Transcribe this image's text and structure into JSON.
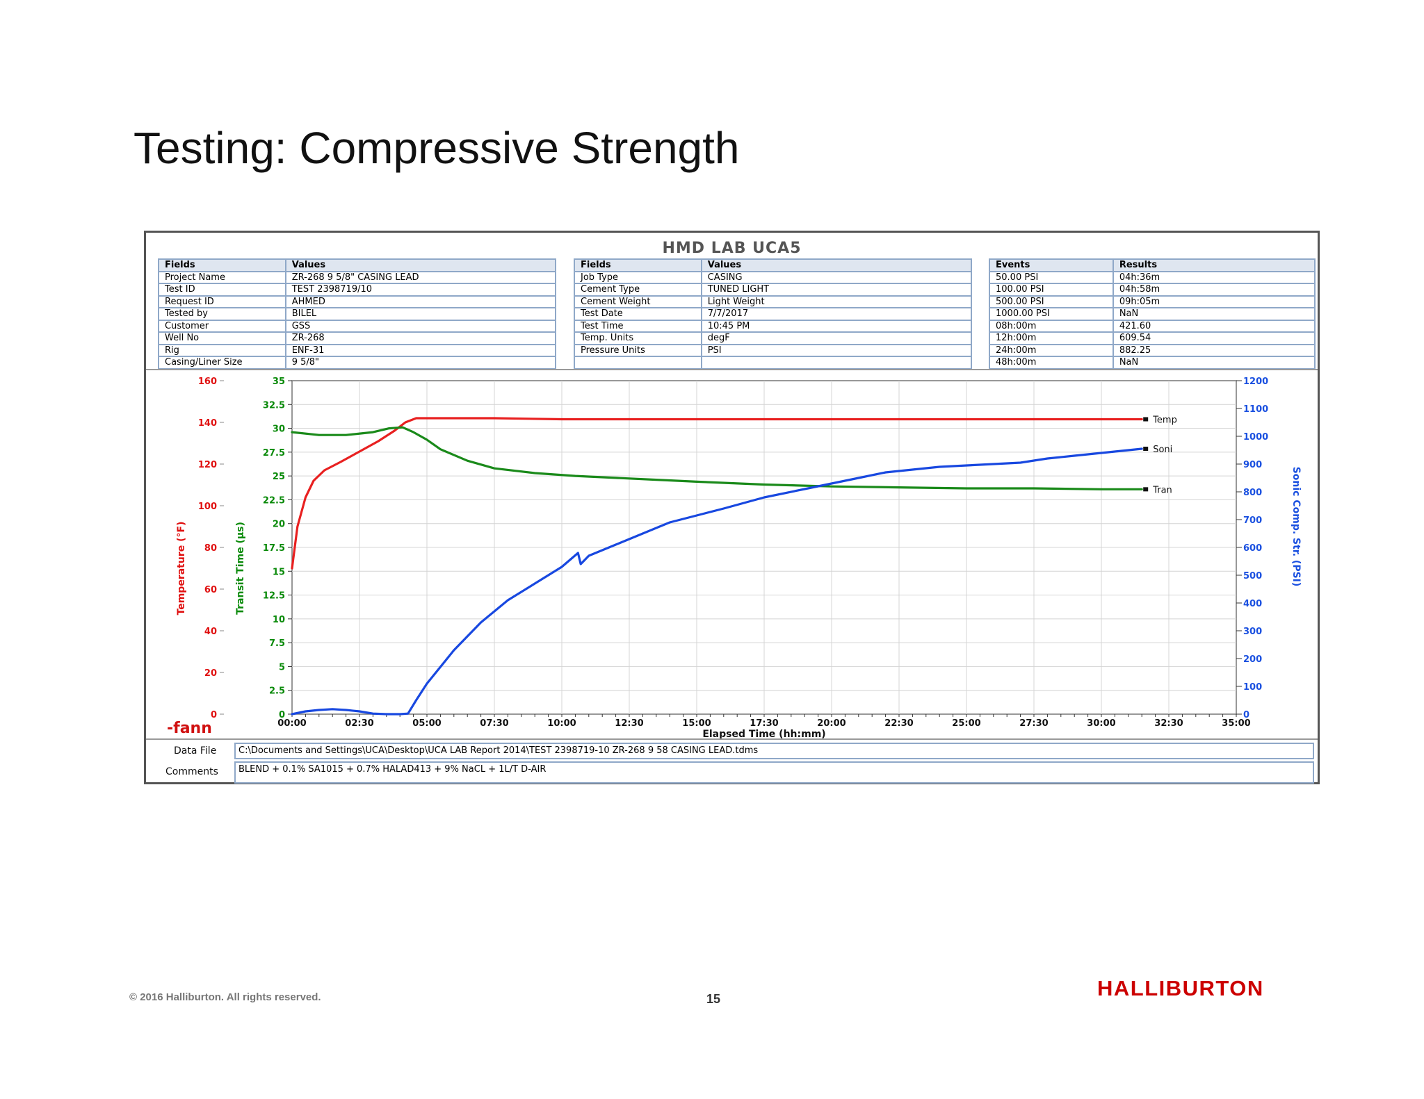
{
  "slide": {
    "title": "Testing: Compressive Strength",
    "copyright": "© 2016 Halliburton. All rights reserved.",
    "page_number": "15",
    "brand": "HALLIBURTON"
  },
  "report": {
    "title": "HMD LAB UCA5",
    "table1": {
      "headers": [
        "Fields",
        "Values"
      ],
      "rows": [
        [
          "Project Name",
          "ZR-268 9 5/8\" CASING LEAD"
        ],
        [
          "Test ID",
          "TEST 2398719/10"
        ],
        [
          "Request ID",
          "AHMED"
        ],
        [
          "Tested by",
          "BILEL"
        ],
        [
          "Customer",
          "GSS"
        ],
        [
          "Well No",
          "ZR-268"
        ],
        [
          "Rig",
          "ENF-31"
        ],
        [
          "Casing/Liner Size",
          "9 5/8\""
        ]
      ]
    },
    "table2": {
      "headers": [
        "Fields",
        "Values"
      ],
      "rows": [
        [
          "Job Type",
          "CASING"
        ],
        [
          "Cement Type",
          "TUNED LIGHT"
        ],
        [
          "Cement Weight",
          "Light Weight"
        ],
        [
          "Test Date",
          "7/7/2017"
        ],
        [
          "Test Time",
          "10:45 PM"
        ],
        [
          "Temp. Units",
          "degF"
        ],
        [
          "Pressure Units",
          "PSI"
        ],
        [
          "",
          ""
        ]
      ]
    },
    "table3": {
      "headers": [
        "Events",
        "Results"
      ],
      "rows": [
        [
          "50.00 PSI",
          "04h:36m"
        ],
        [
          "100.00 PSI",
          "04h:58m"
        ],
        [
          "500.00 PSI",
          "09h:05m"
        ],
        [
          "1000.00 PSI",
          "NaN"
        ],
        [
          "08h:00m",
          "421.60"
        ],
        [
          "12h:00m",
          "609.54"
        ],
        [
          "24h:00m",
          "882.25"
        ],
        [
          "48h:00m",
          "NaN"
        ]
      ]
    },
    "data_file_label": "Data File",
    "data_file": "C:\\Documents and Settings\\UCA\\Desktop\\UCA LAB Report 2014\\TEST 2398719-10 ZR-268 9 58 CASING LEAD.tdms",
    "comments_label": "Comments",
    "comments": "BLEND + 0.1% SA1015 + 0.7% HALAD413 + 9% NaCL + 1L/T D-AIR",
    "logo": "-fann"
  },
  "chart_data": {
    "type": "line",
    "xlabel": "Elapsed Time (hh:mm)",
    "x_unit": "hours",
    "xlim": [
      0,
      35
    ],
    "x_ticks": [
      "00:00",
      "02:30",
      "05:00",
      "07:30",
      "10:00",
      "12:30",
      "15:00",
      "17:30",
      "20:00",
      "22:30",
      "25:00",
      "27:30",
      "30:00",
      "32:30",
      "35:00"
    ],
    "axes": {
      "temperature": {
        "label": "Temperature (°F)",
        "range": [
          0,
          160
        ],
        "ticks": [
          "0",
          "20",
          "40",
          "60",
          "80",
          "100",
          "120",
          "140",
          "160"
        ],
        "color": "#e01010"
      },
      "transit": {
        "label": "Transit Time (µs)",
        "range": [
          0,
          35
        ],
        "ticks": [
          "0",
          "2.5",
          "5",
          "7.5",
          "10",
          "12.5",
          "15",
          "17.5",
          "20",
          "22.5",
          "25",
          "27.5",
          "30",
          "32.5",
          "35"
        ],
        "color": "#0a8a0a"
      },
      "sonic": {
        "label": "Sonic Comp. Str. (PSI)",
        "range": [
          0,
          1200
        ],
        "ticks": [
          "0",
          "100",
          "200",
          "300",
          "400",
          "500",
          "600",
          "700",
          "800",
          "900",
          "1000",
          "1100",
          "1200"
        ],
        "color": "#1a50e0"
      }
    },
    "grid": true,
    "series": [
      {
        "name": "Temp",
        "axis": "temperature",
        "color": "#e82020",
        "x": [
          0,
          0.2,
          0.5,
          0.8,
          1.2,
          1.8,
          2.5,
          3.2,
          3.8,
          4.2,
          4.6,
          5.0,
          7.5,
          10,
          15,
          20,
          25,
          30,
          31.5
        ],
        "y": [
          70,
          90,
          104,
          112,
          117,
          121,
          126,
          131,
          136,
          140,
          142,
          142,
          142,
          141.5,
          141.5,
          141.5,
          141.5,
          141.5,
          141.5
        ]
      },
      {
        "name": "Tran",
        "axis": "transit",
        "color": "#1a8a1a",
        "x": [
          0,
          1,
          2,
          3,
          3.6,
          4.1,
          4.5,
          5.0,
          5.5,
          6.5,
          7.5,
          9,
          10.5,
          12,
          13.5,
          15,
          17.5,
          20,
          22.5,
          25,
          27.5,
          30,
          31.5
        ],
        "y": [
          29.6,
          29.3,
          29.3,
          29.6,
          30.0,
          30.1,
          29.6,
          28.8,
          27.8,
          26.6,
          25.8,
          25.3,
          25.0,
          24.8,
          24.6,
          24.4,
          24.1,
          23.9,
          23.8,
          23.7,
          23.7,
          23.6,
          23.6
        ]
      },
      {
        "name": "Soni",
        "axis": "sonic",
        "color": "#1848e0",
        "x": [
          0,
          0.5,
          1,
          1.5,
          2,
          2.5,
          3,
          3.5,
          4.0,
          4.3,
          4.6,
          5.0,
          6,
          7,
          8,
          9,
          10,
          10.6,
          10.7,
          11,
          12,
          13,
          14,
          15,
          16,
          17.5,
          19,
          20,
          21,
          22,
          23,
          24,
          25,
          26,
          27,
          28,
          29,
          30,
          31,
          31.5
        ],
        "y": [
          0,
          10,
          15,
          18,
          15,
          10,
          2,
          0,
          0,
          2,
          50,
          110,
          230,
          330,
          410,
          470,
          530,
          580,
          540,
          570,
          610,
          650,
          690,
          715,
          740,
          780,
          810,
          830,
          850,
          870,
          880,
          890,
          895,
          900,
          905,
          920,
          930,
          940,
          950,
          955
        ]
      }
    ]
  }
}
